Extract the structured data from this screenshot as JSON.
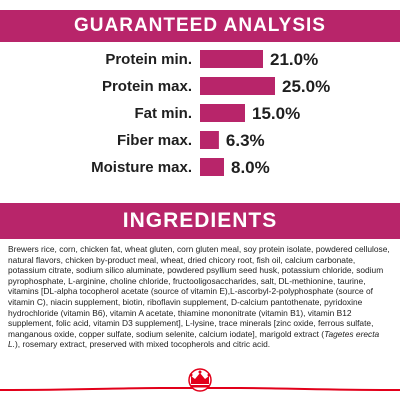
{
  "guaranteed_analysis": {
    "title": "GUARANTEED ANALYSIS"
  },
  "chart_data": {
    "type": "bar",
    "categories": [
      "Protein min.",
      "Protein max.",
      "Fat min.",
      "Fiber max.",
      "Moisture max."
    ],
    "values": [
      21.0,
      25.0,
      15.0,
      6.3,
      8.0
    ],
    "value_labels": [
      "21.0%",
      "25.0%",
      "15.0%",
      "6.3%",
      "8.0%"
    ],
    "orientation": "horizontal",
    "xlim": [
      0,
      25
    ],
    "title": "GUARANTEED ANALYSIS",
    "xlabel": "",
    "ylabel": "",
    "grid": false,
    "bar_color": "#b8256a"
  },
  "ingredients": {
    "title": "INGREDIENTS",
    "text_before_italic": "Brewers rice, corn, chicken fat, wheat gluten, corn gluten meal, soy protein isolate, powdered cellulose, natural flavors, chicken by-product meal, wheat, dried chicory root, fish oil, calcium carbonate, potassium citrate, sodium silico aluminate, powdered psyllium seed husk, potassium chloride, sodium pyrophosphate, L-arginine, choline chloride, fructooligosaccharides, salt, DL-methionine, taurine, vitamins [DL-alpha tocopherol acetate (source of vitamin E),L-ascorbyl-2-polyphosphate (source of vitamin C), niacin supplement, biotin, riboflavin supplement, D-calcium pantothenate, pyridoxine hydrochloride (vitamin B6), vitamin A acetate, thiamine mononitrate (vitamin B1), vitamin B12 supplement, folic acid, vitamin D3 supplement], L-lysine, trace minerals [zinc oxide, ferrous sulfate, manganous oxide, copper sulfate, sodium selenite, calcium iodate], marigold extract (",
    "italic_text": "Tagetes erecta L.",
    "text_after_italic": "), rosemary extract, preserved with mixed tocopherols and citric acid."
  },
  "colors": {
    "brand": "#b8256a",
    "logo_red": "#e2001a"
  },
  "logo": {
    "icon": "royal-crown-icon"
  }
}
